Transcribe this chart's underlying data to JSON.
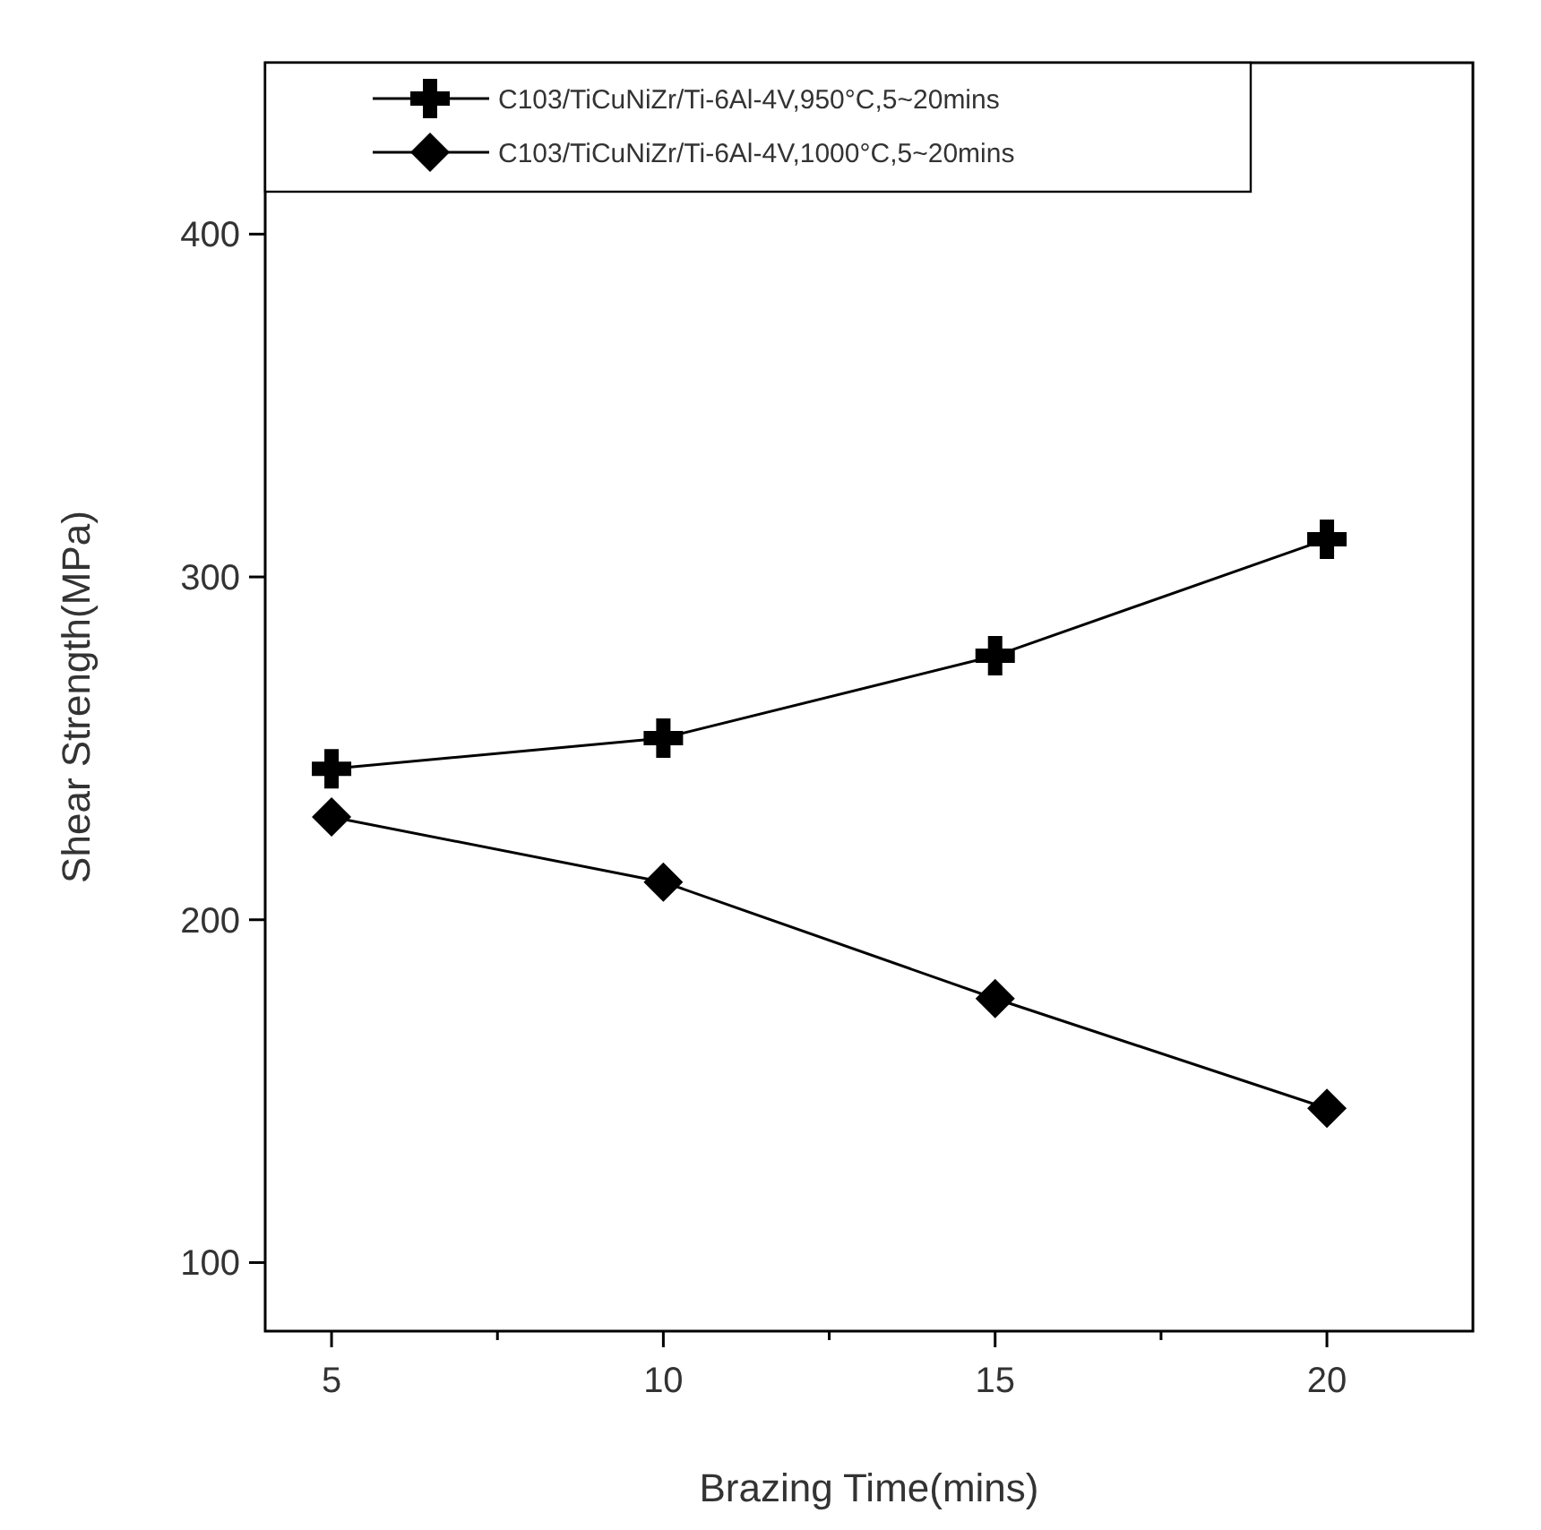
{
  "chart_data": {
    "type": "line",
    "xlabel": "Brazing Time(mins)",
    "ylabel": "Shear Strength(MPa)",
    "x": [
      5,
      10,
      15,
      20
    ],
    "series": [
      {
        "name": "C103/TiCuNiZr/Ti-6Al-4V,950°C,5~20mins",
        "color": "#000000",
        "marker": "cross",
        "values": [
          244,
          253,
          277,
          311
        ]
      },
      {
        "name": "C103/TiCuNiZr/Ti-6Al-4V,1000°C,5~20mins",
        "color": "#000000",
        "marker": "diamond",
        "values": [
          230,
          211,
          177,
          145
        ]
      }
    ],
    "xlim": [
      4,
      22.2
    ],
    "xticks": [
      5,
      {
        "value": 7.5,
        "label": null
      },
      10,
      {
        "value": 12.5,
        "label": null
      },
      15,
      {
        "value": 17.5,
        "label": null
      },
      20
    ],
    "ylim": [
      80,
      450
    ],
    "yticks": [
      100,
      200,
      300,
      400
    ],
    "grid": false,
    "legend": "top left",
    "line_style": "solid"
  }
}
